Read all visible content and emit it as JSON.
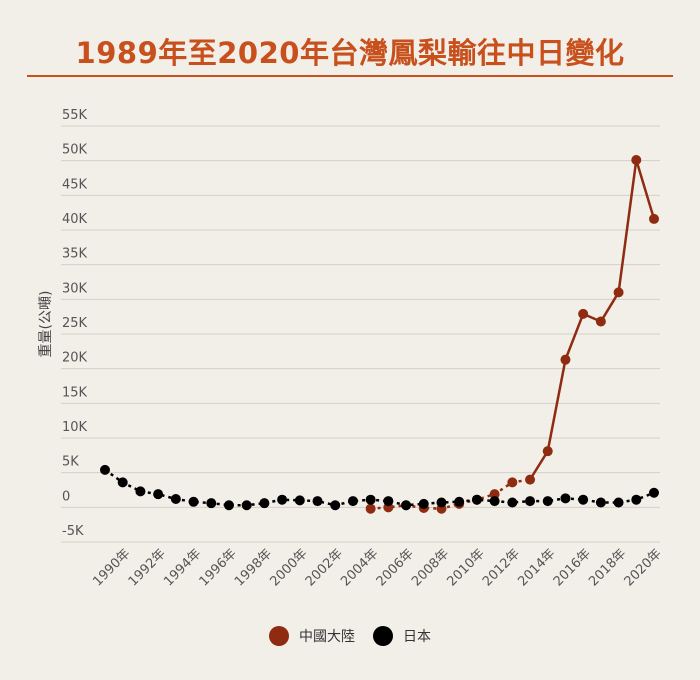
{
  "title": "1989年至2020年台灣鳳梨輸往中日變化",
  "chart_data": {
    "type": "line",
    "title": "1989年至2020年台灣鳳梨輸往中日變化",
    "ylabel": "重量(公噸)",
    "xlabel": "",
    "ylim": [
      -5000,
      55000
    ],
    "yticks": [
      {
        "value": 55000,
        "label": "55K"
      },
      {
        "value": 50000,
        "label": "50K"
      },
      {
        "value": 45000,
        "label": "45K"
      },
      {
        "value": 40000,
        "label": "40K"
      },
      {
        "value": 35000,
        "label": "35K"
      },
      {
        "value": 30000,
        "label": "30K"
      },
      {
        "value": 25000,
        "label": "25K"
      },
      {
        "value": 20000,
        "label": "20K"
      },
      {
        "value": 15000,
        "label": "15K"
      },
      {
        "value": 10000,
        "label": "10K"
      },
      {
        "value": 5000,
        "label": "5K"
      },
      {
        "value": 0,
        "label": "0"
      },
      {
        "value": -5000,
        "label": "-5K"
      }
    ],
    "xticks": [
      "1990年",
      "1992年",
      "1994年",
      "1996年",
      "1998年",
      "2000年",
      "2002年",
      "2004年",
      "2006年",
      "2008年",
      "2010年",
      "2012年",
      "2014年",
      "2016年",
      "2018年",
      "2020年"
    ],
    "x": [
      1989,
      1990,
      1991,
      1992,
      1993,
      1994,
      1995,
      1996,
      1997,
      1998,
      1999,
      2000,
      2001,
      2002,
      2003,
      2004,
      2005,
      2006,
      2007,
      2008,
      2009,
      2010,
      2011,
      2012,
      2013,
      2014,
      2015,
      2016,
      2017,
      2018,
      2019,
      2020
    ],
    "grid": true,
    "legend_position": "bottom",
    "series": [
      {
        "name": "中國大陸",
        "color": "#8e2b10",
        "x": [
          2004,
          2005,
          2006,
          2007,
          2008,
          2009,
          2010,
          2011,
          2012,
          2013,
          2014,
          2015,
          2016,
          2017,
          2018,
          2019,
          2020
        ],
        "values": [
          -200,
          0,
          300,
          -100,
          -200,
          500,
          1100,
          1900,
          3600,
          4000,
          8100,
          21300,
          27900,
          26800,
          31000,
          50100,
          41600
        ]
      },
      {
        "name": "日本",
        "color": "#000000",
        "x": [
          1989,
          1990,
          1991,
          1992,
          1993,
          1994,
          1995,
          1996,
          1997,
          1998,
          1999,
          2000,
          2001,
          2002,
          2003,
          2004,
          2005,
          2006,
          2007,
          2008,
          2009,
          2010,
          2011,
          2012,
          2013,
          2014,
          2015,
          2016,
          2017,
          2018,
          2019,
          2020
        ],
        "values": [
          5400,
          3600,
          2300,
          1900,
          1200,
          800,
          600,
          300,
          300,
          600,
          1100,
          1000,
          900,
          300,
          900,
          1100,
          900,
          300,
          500,
          700,
          800,
          1100,
          900,
          700,
          900,
          900,
          1300,
          1100,
          700,
          700,
          1100,
          2100
        ]
      }
    ]
  }
}
